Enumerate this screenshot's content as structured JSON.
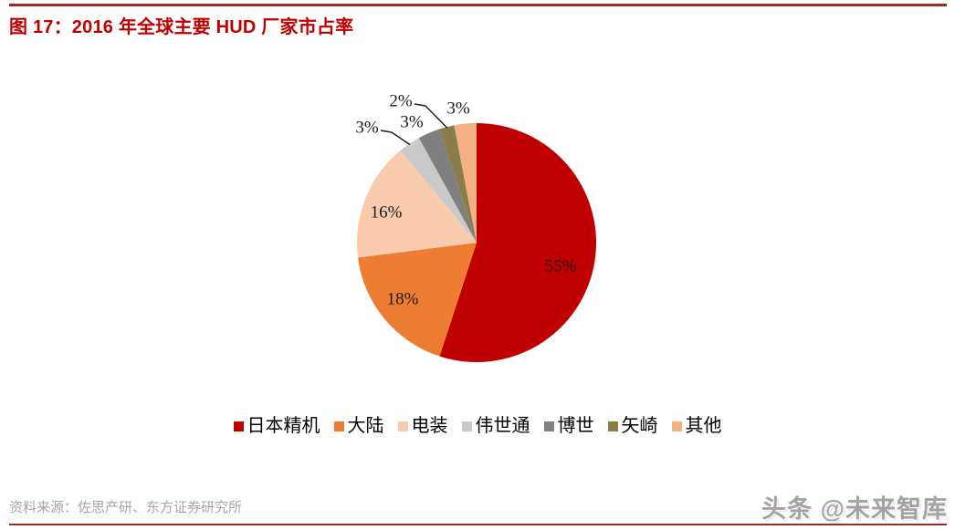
{
  "figure": {
    "title": "图 17：2016 年全球主要 HUD 厂家市占率",
    "source": "资料来源：佐思产研、东方证券研究所",
    "watermark": "头条 @未来智库"
  },
  "colors": {
    "accent_red": "#C00000",
    "rule": "#9A2B25",
    "source_text": "#A6A6A6",
    "watermark_text": "#A3A3A3",
    "data_label_text": "#1A1A1A",
    "leader_line": "#1A1A1A"
  },
  "chart_data": {
    "type": "pie",
    "title": "2016 年全球主要 HUD 厂家市占率",
    "unit": "%",
    "direction": "clockwise",
    "start_angle_deg": 0,
    "legend_position": "bottom",
    "slices": [
      {
        "label": "日本精机",
        "value": 55,
        "data_label": "55%",
        "color": "#C00000",
        "label_placement": "inside"
      },
      {
        "label": "大陆",
        "value": 18,
        "data_label": "18%",
        "color": "#ED7D31",
        "label_placement": "inside"
      },
      {
        "label": "电装",
        "value": 16,
        "data_label": "16%",
        "color": "#F8CBAD",
        "label_placement": "inside"
      },
      {
        "label": "伟世通",
        "value": 3,
        "data_label": "3%",
        "color": "#C9C9C9",
        "label_placement": "outside-leader"
      },
      {
        "label": "博世",
        "value": 3,
        "data_label": "3%",
        "color": "#7F7F7F",
        "label_placement": "outside"
      },
      {
        "label": "矢崎",
        "value": 2,
        "data_label": "2%",
        "color": "#8A7D4B",
        "label_placement": "outside-leader"
      },
      {
        "label": "其他",
        "value": 3,
        "data_label": "3%",
        "color": "#F4B183",
        "label_placement": "outside"
      }
    ]
  }
}
